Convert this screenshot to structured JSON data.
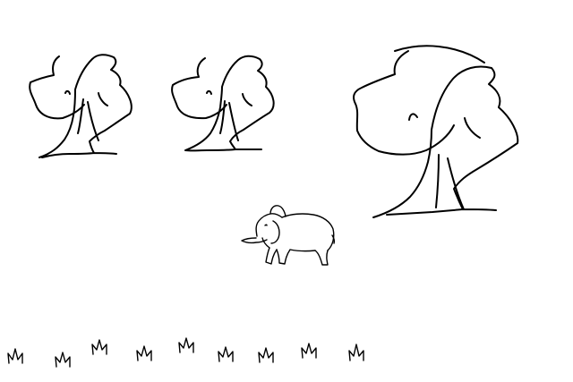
{
  "scene": {
    "background_color": "#ffffff",
    "line_color": "#000000",
    "objects": {
      "trees": [
        "tree",
        "tree",
        "tree"
      ],
      "animal": "elephant",
      "grass_tufts": 9
    }
  }
}
